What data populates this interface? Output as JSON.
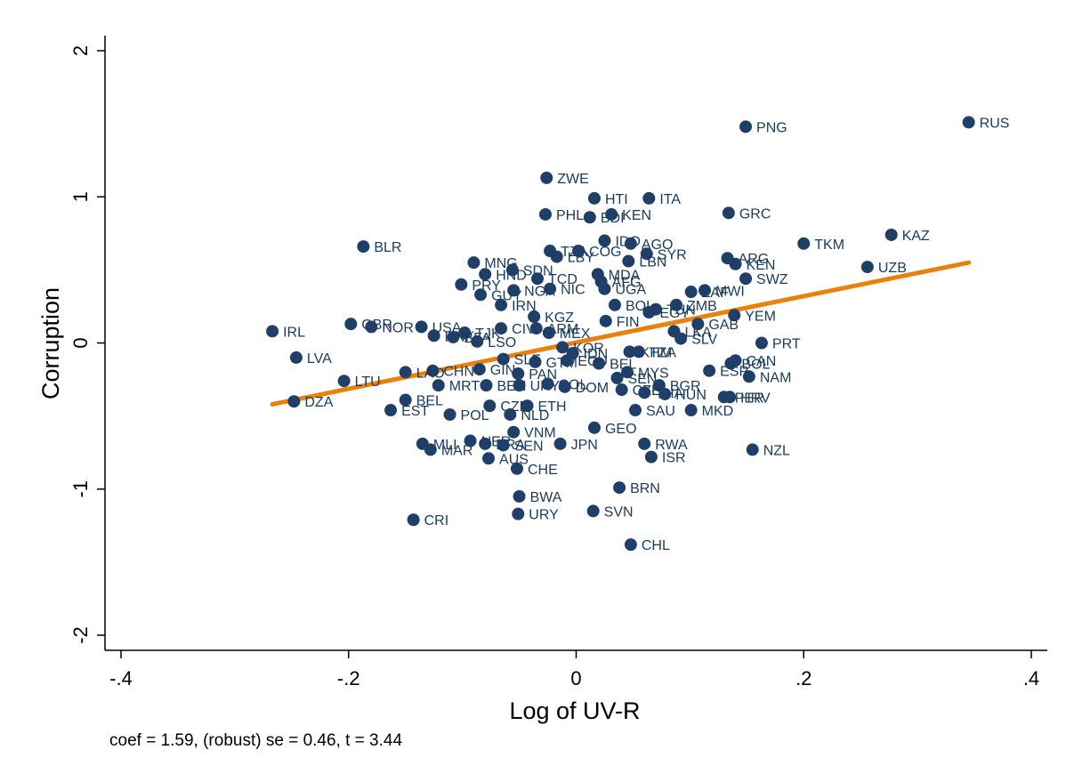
{
  "chart_data": {
    "type": "scatter",
    "xlabel": "Log of UV-R",
    "ylabel": "Corruption",
    "xlim": [
      -0.4,
      0.4
    ],
    "ylim": [
      -2,
      2
    ],
    "xticks": [
      -0.4,
      -0.2,
      0,
      0.2,
      0.4
    ],
    "xtick_labels": [
      "-.4",
      "-.2",
      "0",
      ".2",
      ".4"
    ],
    "yticks": [
      -2,
      -1,
      0,
      1,
      2
    ],
    "ytick_labels": [
      "-2",
      "-1",
      "0",
      "1",
      "2"
    ],
    "grid": false,
    "note": "coef = 1.59, (robust) se = 0.46, t = 3.44",
    "colors": {
      "points": "#1f3f68",
      "labels": "#1a3a5c",
      "fit_line": "#e8820c"
    },
    "fit_line": {
      "x": [
        -0.267,
        0.345
      ],
      "y": [
        -0.42,
        0.55
      ]
    },
    "points": [
      {
        "label": "RUS",
        "x": 0.345,
        "y": 1.51
      },
      {
        "label": "PNG",
        "x": 0.149,
        "y": 1.48
      },
      {
        "label": "ZWE",
        "x": -0.026,
        "y": 1.13
      },
      {
        "label": "HTI",
        "x": 0.016,
        "y": 0.99
      },
      {
        "label": "ITA",
        "x": 0.064,
        "y": 0.99
      },
      {
        "label": "GRC",
        "x": 0.134,
        "y": 0.89
      },
      {
        "label": "PHL",
        "x": -0.027,
        "y": 0.88
      },
      {
        "label": "BDI",
        "x": 0.012,
        "y": 0.86
      },
      {
        "label": "KEN",
        "x": 0.031,
        "y": 0.88
      },
      {
        "label": "KAZ",
        "x": 0.277,
        "y": 0.74
      },
      {
        "label": "TKM",
        "x": 0.2,
        "y": 0.68
      },
      {
        "label": "BLR",
        "x": -0.187,
        "y": 0.66
      },
      {
        "label": "IDO",
        "x": 0.025,
        "y": 0.7
      },
      {
        "label": "AGO",
        "x": 0.048,
        "y": 0.68
      },
      {
        "label": "SYR",
        "x": 0.062,
        "y": 0.61
      },
      {
        "label": "TZA",
        "x": -0.023,
        "y": 0.63
      },
      {
        "label": "LBY",
        "x": -0.017,
        "y": 0.59
      },
      {
        "label": "COG",
        "x": 0.002,
        "y": 0.63
      },
      {
        "label": "ARG",
        "x": 0.133,
        "y": 0.58
      },
      {
        "label": "KEN",
        "x": 0.14,
        "y": 0.54
      },
      {
        "label": "MNG",
        "x": -0.09,
        "y": 0.55
      },
      {
        "label": "LBN",
        "x": 0.046,
        "y": 0.56
      },
      {
        "label": "UZB",
        "x": 0.256,
        "y": 0.52
      },
      {
        "label": "HND",
        "x": -0.08,
        "y": 0.47
      },
      {
        "label": "SDN",
        "x": -0.056,
        "y": 0.5
      },
      {
        "label": "TCD",
        "x": -0.034,
        "y": 0.44
      },
      {
        "label": "MDA",
        "x": 0.019,
        "y": 0.47
      },
      {
        "label": "AFG",
        "x": 0.022,
        "y": 0.42
      },
      {
        "label": "SWZ",
        "x": 0.149,
        "y": 0.44
      },
      {
        "label": "PRY",
        "x": -0.101,
        "y": 0.4
      },
      {
        "label": "GUY",
        "x": -0.084,
        "y": 0.33
      },
      {
        "label": "NGA",
        "x": -0.055,
        "y": 0.36
      },
      {
        "label": "NIC",
        "x": -0.023,
        "y": 0.37
      },
      {
        "label": "UGA",
        "x": 0.025,
        "y": 0.37
      },
      {
        "label": "MWI",
        "x": 0.113,
        "y": 0.36
      },
      {
        "label": "ZAF",
        "x": 0.101,
        "y": 0.35
      },
      {
        "label": "IRN",
        "x": -0.066,
        "y": 0.26
      },
      {
        "label": "BOL",
        "x": 0.034,
        "y": 0.26
      },
      {
        "label": "TUN",
        "x": 0.07,
        "y": 0.23
      },
      {
        "label": "ZMB",
        "x": 0.088,
        "y": 0.26
      },
      {
        "label": "EGY",
        "x": 0.064,
        "y": 0.21
      },
      {
        "label": "YEM",
        "x": 0.139,
        "y": 0.19
      },
      {
        "label": "KGZ",
        "x": -0.037,
        "y": 0.18
      },
      {
        "label": "FIN",
        "x": 0.026,
        "y": 0.15
      },
      {
        "label": "GAB",
        "x": 0.107,
        "y": 0.13
      },
      {
        "label": "LKA",
        "x": 0.086,
        "y": 0.08
      },
      {
        "label": "GBR",
        "x": -0.198,
        "y": 0.13
      },
      {
        "label": "NOR",
        "x": -0.18,
        "y": 0.11
      },
      {
        "label": "USA",
        "x": -0.136,
        "y": 0.11
      },
      {
        "label": "IRL",
        "x": -0.267,
        "y": 0.08
      },
      {
        "label": "TJK",
        "x": -0.098,
        "y": 0.07
      },
      {
        "label": "CIV",
        "x": -0.066,
        "y": 0.1
      },
      {
        "label": "ARM",
        "x": -0.035,
        "y": 0.1
      },
      {
        "label": "MEX",
        "x": -0.024,
        "y": 0.07
      },
      {
        "label": "DNK",
        "x": -0.125,
        "y": 0.05
      },
      {
        "label": "BFA",
        "x": -0.108,
        "y": 0.04
      },
      {
        "label": "LSO",
        "x": -0.087,
        "y": 0.01
      },
      {
        "label": "SLV",
        "x": 0.092,
        "y": 0.03
      },
      {
        "label": "PRT",
        "x": 0.163,
        "y": 0.0
      },
      {
        "label": "KOR",
        "x": -0.012,
        "y": -0.03
      },
      {
        "label": "IDN",
        "x": -0.003,
        "y": -0.07
      },
      {
        "label": "KHM",
        "x": 0.047,
        "y": -0.06
      },
      {
        "label": "TZA",
        "x": 0.055,
        "y": -0.06
      },
      {
        "label": "CAN",
        "x": 0.14,
        "y": -0.12
      },
      {
        "label": "BOL",
        "x": 0.136,
        "y": -0.14
      },
      {
        "label": "LVA",
        "x": -0.246,
        "y": -0.1
      },
      {
        "label": "SLE",
        "x": -0.064,
        "y": -0.11
      },
      {
        "label": "GTM",
        "x": -0.036,
        "y": -0.13
      },
      {
        "label": "ECU",
        "x": -0.008,
        "y": -0.12
      },
      {
        "label": "BEL",
        "x": 0.02,
        "y": -0.14
      },
      {
        "label": "ESP",
        "x": 0.117,
        "y": -0.19
      },
      {
        "label": "MYS",
        "x": 0.045,
        "y": -0.2
      },
      {
        "label": "GIN",
        "x": -0.085,
        "y": -0.18
      },
      {
        "label": "CHN",
        "x": -0.126,
        "y": -0.19
      },
      {
        "label": "LAO",
        "x": -0.15,
        "y": -0.2
      },
      {
        "label": "PAN",
        "x": -0.051,
        "y": -0.21
      },
      {
        "label": "SEN",
        "x": 0.036,
        "y": -0.24
      },
      {
        "label": "NAM",
        "x": 0.152,
        "y": -0.23
      },
      {
        "label": "LTU",
        "x": -0.204,
        "y": -0.26
      },
      {
        "label": "MRT",
        "x": -0.121,
        "y": -0.29
      },
      {
        "label": "BEN",
        "x": -0.079,
        "y": -0.29
      },
      {
        "label": "URY",
        "x": -0.05,
        "y": -0.29
      },
      {
        "label": "COL",
        "x": -0.025,
        "y": -0.28
      },
      {
        "label": "DOM",
        "x": -0.01,
        "y": -0.3
      },
      {
        "label": "BGR",
        "x": 0.073,
        "y": -0.29
      },
      {
        "label": "CZE",
        "x": 0.04,
        "y": -0.32
      },
      {
        "label": "THA",
        "x": 0.06,
        "y": -0.34
      },
      {
        "label": "HUN",
        "x": 0.078,
        "y": -0.35
      },
      {
        "label": "HRV",
        "x": 0.135,
        "y": -0.37
      },
      {
        "label": "PER",
        "x": 0.13,
        "y": -0.37
      },
      {
        "label": "BEL",
        "x": -0.15,
        "y": -0.39
      },
      {
        "label": "DZA",
        "x": -0.248,
        "y": -0.4
      },
      {
        "label": "CZE",
        "x": -0.076,
        "y": -0.43
      },
      {
        "label": "ETH",
        "x": -0.043,
        "y": -0.43
      },
      {
        "label": "EST",
        "x": -0.163,
        "y": -0.46
      },
      {
        "label": "SAU",
        "x": 0.052,
        "y": -0.46
      },
      {
        "label": "MKD",
        "x": 0.101,
        "y": -0.46
      },
      {
        "label": "POL",
        "x": -0.111,
        "y": -0.49
      },
      {
        "label": "NLD",
        "x": -0.058,
        "y": -0.49
      },
      {
        "label": "GEO",
        "x": 0.016,
        "y": -0.58
      },
      {
        "label": "VNM",
        "x": -0.055,
        "y": -0.61
      },
      {
        "label": "RWA",
        "x": 0.06,
        "y": -0.69
      },
      {
        "label": "JPN",
        "x": -0.014,
        "y": -0.69
      },
      {
        "label": "MLI",
        "x": -0.135,
        "y": -0.69
      },
      {
        "label": "MAR",
        "x": -0.128,
        "y": -0.73
      },
      {
        "label": "NER",
        "x": -0.093,
        "y": -0.67
      },
      {
        "label": "BRA",
        "x": -0.08,
        "y": -0.69
      },
      {
        "label": "SEN",
        "x": -0.064,
        "y": -0.7
      },
      {
        "label": "AUS",
        "x": -0.077,
        "y": -0.79
      },
      {
        "label": "NZL",
        "x": 0.155,
        "y": -0.73
      },
      {
        "label": "ISR",
        "x": 0.066,
        "y": -0.78
      },
      {
        "label": "CHE",
        "x": -0.052,
        "y": -0.86
      },
      {
        "label": "BRN",
        "x": 0.038,
        "y": -0.99
      },
      {
        "label": "BWA",
        "x": -0.05,
        "y": -1.05
      },
      {
        "label": "SVN",
        "x": 0.015,
        "y": -1.15
      },
      {
        "label": "URY",
        "x": -0.051,
        "y": -1.17
      },
      {
        "label": "CRI",
        "x": -0.143,
        "y": -1.21
      },
      {
        "label": "CHL",
        "x": 0.048,
        "y": -1.38
      }
    ]
  }
}
